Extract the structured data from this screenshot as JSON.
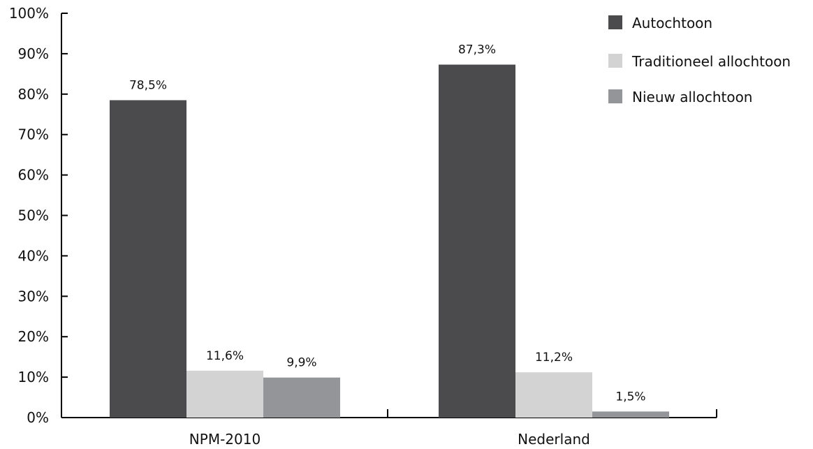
{
  "chart_data": {
    "type": "bar",
    "categories": [
      "NPM-2010",
      "Nederland"
    ],
    "series": [
      {
        "name": "Autochtoon",
        "values": [
          78.5,
          87.3
        ],
        "labels": [
          "78,5%",
          "87,3%"
        ],
        "color": "#4b4b4d"
      },
      {
        "name": "Traditioneel allochtoon",
        "values": [
          11.6,
          11.2
        ],
        "labels": [
          "11,6%",
          "11,2%"
        ],
        "color": "#d3d3d4"
      },
      {
        "name": "Nieuw allochtoon",
        "values": [
          9.9,
          1.5
        ],
        "labels": [
          "9,9%",
          "1,5%"
        ],
        "color": "#939598"
      }
    ],
    "y_ticks": [
      "0%",
      "10%",
      "20%",
      "30%",
      "40%",
      "50%",
      "60%",
      "70%",
      "80%",
      "90%",
      "100%"
    ],
    "ylim": [
      0,
      100
    ],
    "legend_position": "top-right",
    "grid": false,
    "title": "",
    "xlabel": "",
    "ylabel": ""
  }
}
